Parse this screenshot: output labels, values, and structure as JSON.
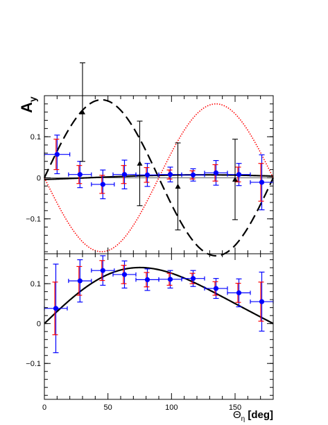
{
  "chart_data": [
    {
      "panel": "top",
      "type": "scatter",
      "ylabel_main": "A",
      "ylabel_sub": "y",
      "xlim": [
        0,
        180
      ],
      "ylim": [
        -0.185,
        0.2
      ],
      "yticks": [
        0.1,
        0,
        -0.1
      ],
      "ytick_labels": [
        "0.1",
        "0",
        "−0.1"
      ],
      "series": [
        {
          "marker": "circle",
          "color": "#0000ff",
          "syscolor": "#ff0000",
          "points": [
            {
              "x": 10,
              "y": 0.057,
              "xerr": 10,
              "yerr": 0.047,
              "syserr": 0.037
            },
            {
              "x": 28,
              "y": 0.008,
              "xerr": 9,
              "yerr": 0.032,
              "syserr": 0.022
            },
            {
              "x": 46,
              "y": -0.016,
              "xerr": 9,
              "yerr": 0.035,
              "syserr": 0.022
            },
            {
              "x": 63,
              "y": 0.008,
              "xerr": 9,
              "yerr": 0.035,
              "syserr": 0.022
            },
            {
              "x": 81,
              "y": 0.007,
              "xerr": 9,
              "yerr": 0.028,
              "syserr": 0.018
            },
            {
              "x": 99,
              "y": 0.008,
              "xerr": 9,
              "yerr": 0.018,
              "syserr": 0.011
            },
            {
              "x": 117,
              "y": 0.007,
              "xerr": 9,
              "yerr": 0.015,
              "syserr": 0.01
            },
            {
              "x": 135,
              "y": 0.012,
              "xerr": 9,
              "yerr": 0.03,
              "syserr": 0.02
            },
            {
              "x": 153,
              "y": 0.008,
              "xerr": 9,
              "yerr": 0.027,
              "syserr": 0.018
            },
            {
              "x": 171,
              "y": -0.011,
              "xerr": 9,
              "yerr": 0.067,
              "syserr": 0.046
            }
          ]
        },
        {
          "marker": "triangle",
          "color": "#000000",
          "points": [
            {
              "x": 30,
              "y": 0.16,
              "yerr": 0.12
            },
            {
              "x": 75,
              "y": 0.035,
              "yerr": 0.103
            },
            {
              "x": 105,
              "y": -0.021,
              "yerr": 0.106
            },
            {
              "x": 150,
              "y": -0.004,
              "yerr": 0.098
            }
          ]
        }
      ],
      "curves": [
        {
          "style": "solid",
          "color": "#000000",
          "width": 2.2,
          "a": 0.006
        },
        {
          "style": "dashed",
          "color": "#000000",
          "width": 2.2,
          "a": 0.19
        },
        {
          "style": "dotted",
          "color": "#ff0000",
          "width": 1.6,
          "a": -0.18
        }
      ]
    },
    {
      "panel": "bottom",
      "type": "scatter",
      "xlabel_main": "Θ",
      "xlabel_sub": "η",
      "xlabel_unit": " [deg]",
      "xlim": [
        0,
        180
      ],
      "ylim": [
        -0.19,
        0.175
      ],
      "xticks": [
        0,
        50,
        100,
        150
      ],
      "xtick_labels": [
        "0",
        "50",
        "100",
        "150"
      ],
      "yticks": [
        0.1,
        0,
        -0.1
      ],
      "ytick_labels": [
        "0.1",
        "0",
        "−0.1"
      ],
      "series": [
        {
          "marker": "circle",
          "color": "#0000ff",
          "syscolor": "#ff0000",
          "points": [
            {
              "x": 9,
              "y": 0.038,
              "xerr": 9,
              "yerr": 0.111,
              "syserr": 0.066
            },
            {
              "x": 28,
              "y": 0.107,
              "xerr": 9,
              "yerr": 0.053,
              "syserr": 0.036
            },
            {
              "x": 46,
              "y": 0.133,
              "xerr": 9,
              "yerr": 0.037,
              "syserr": 0.025
            },
            {
              "x": 63,
              "y": 0.123,
              "xerr": 9,
              "yerr": 0.034,
              "syserr": 0.023
            },
            {
              "x": 81,
              "y": 0.11,
              "xerr": 9,
              "yerr": 0.027,
              "syserr": 0.018
            },
            {
              "x": 99,
              "y": 0.111,
              "xerr": 9,
              "yerr": 0.022,
              "syserr": 0.015
            },
            {
              "x": 117,
              "y": 0.113,
              "xerr": 9,
              "yerr": 0.02,
              "syserr": 0.013
            },
            {
              "x": 135,
              "y": 0.088,
              "xerr": 9,
              "yerr": 0.025,
              "syserr": 0.017
            },
            {
              "x": 153,
              "y": 0.077,
              "xerr": 9,
              "yerr": 0.035,
              "syserr": 0.024
            },
            {
              "x": 171,
              "y": 0.055,
              "xerr": 9,
              "yerr": 0.074,
              "syserr": 0.049
            }
          ]
        }
      ],
      "curves": [
        {
          "style": "solid",
          "color": "#000000",
          "width": 2.2,
          "a": 0.135,
          "b": 0.02
        }
      ]
    }
  ]
}
